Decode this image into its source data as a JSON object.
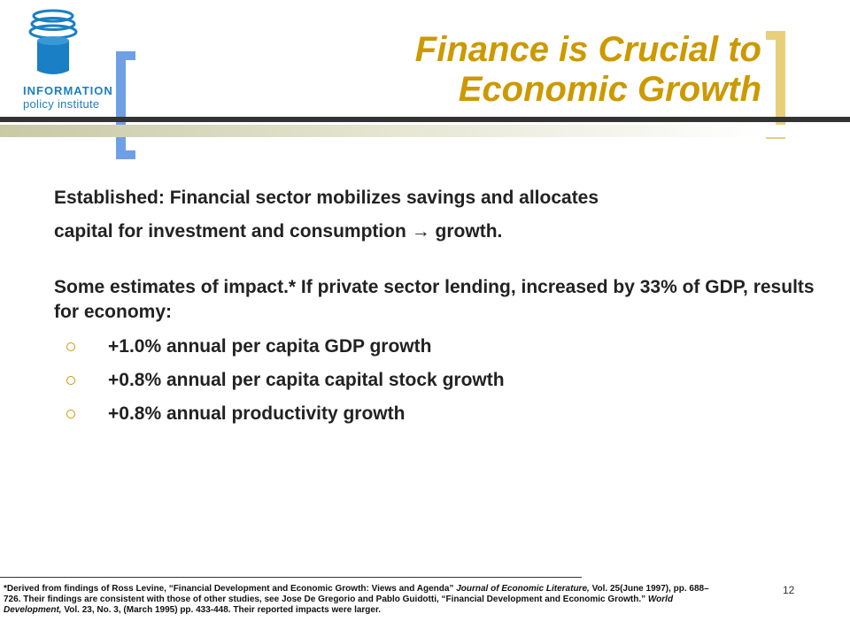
{
  "logo": {
    "line1": "INFORMATION",
    "line2": "policy institute"
  },
  "title": {
    "line1": "Finance is Crucial to",
    "line2": "Economic Growth"
  },
  "body": {
    "para1_line1": "Established: Financial sector mobilizes savings and allocates",
    "para1_line2": "capital for investment and consumption → growth.",
    "para2": "Some estimates of impact.*  If private sector lending, increased by 33% of GDP, results for economy:",
    "bullets": [
      "+1.0% annual per capita GDP growth",
      "+0.8% annual per capita capital stock growth",
      "+0.8% annual productivity growth"
    ]
  },
  "footnote": {
    "part1": "*Derived from findings of Ross Levine, “Financial Development and Economic Growth: Views and Agenda” ",
    "journal1": "Journal of Economic Literature,",
    "part2": " Vol. 25(June 1997), pp. 688–726.  Their findings are consistent with those of other studies, see Jose De Gregorio and Pablo Guidotti, “Financial Development and Economic Growth.” ",
    "journal2": "World Development,",
    "part3": " Vol. 23, No. 3, (March 1995) pp. 433-448.  Their reported impacts were larger."
  },
  "page_number": "12",
  "colors": {
    "title": "#cc9900",
    "left_bracket": "#6fa0e6",
    "right_bracket": "#e8cf7a",
    "logo_blue": "#1a7fc4"
  },
  "icons": {
    "logo": "stacked-disc-cylinder-icon",
    "bullet": "ring-bullet-icon"
  }
}
